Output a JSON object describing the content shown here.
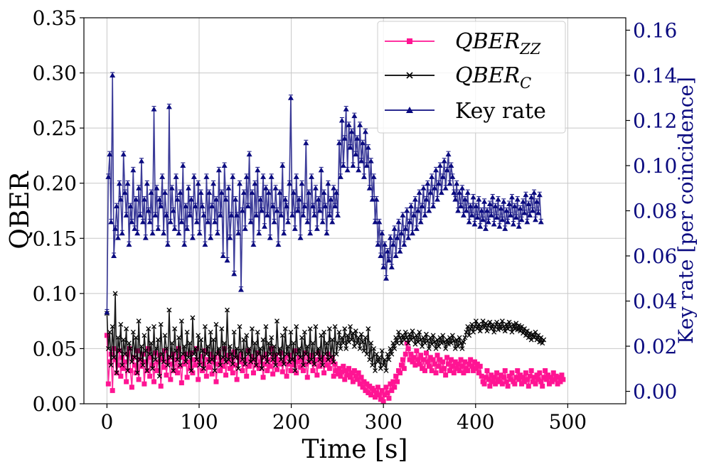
{
  "chart_data": {
    "type": "line",
    "title": "",
    "xlabel": "Time [s]",
    "ylabel": "QBER",
    "y2label": "Key rate [per coincidence]",
    "xlim": [
      -25,
      563
    ],
    "ylim": [
      0,
      0.35
    ],
    "y2lim": [
      -0.0055,
      0.1655
    ],
    "x_ticks": [
      "0",
      "100",
      "200",
      "300",
      "400",
      "500"
    ],
    "x_tick_values": [
      0,
      100,
      200,
      300,
      400,
      500
    ],
    "y_ticks": [
      "0.00",
      "0.05",
      "0.10",
      "0.15",
      "0.20",
      "0.25",
      "0.30",
      "0.35"
    ],
    "y_tick_values": [
      0,
      0.05,
      0.1,
      0.15,
      0.2,
      0.25,
      0.3,
      0.35
    ],
    "y2_ticks": [
      "0.00",
      "0.02",
      "0.04",
      "0.06",
      "0.08",
      "0.10",
      "0.12",
      "0.14",
      "0.16"
    ],
    "y2_tick_values": [
      0,
      0.02,
      0.04,
      0.06,
      0.08,
      0.1,
      0.12,
      0.14,
      0.16
    ],
    "grid": true,
    "legend_position": "top-right",
    "x_step": 1.5,
    "series": [
      {
        "name": "QBER_ZZ",
        "legend_main": "QBER",
        "legend_sub": "ZZ",
        "axis": "left",
        "color": "#ff1493",
        "marker": "square",
        "x_start": 0,
        "values": [
          0.062,
          0.018,
          0.038,
          0.045,
          0.012,
          0.05,
          0.04,
          0.028,
          0.035,
          0.048,
          0.025,
          0.042,
          0.032,
          0.038,
          0.02,
          0.045,
          0.05,
          0.03,
          0.015,
          0.042,
          0.035,
          0.028,
          0.048,
          0.022,
          0.04,
          0.034,
          0.045,
          0.018,
          0.038,
          0.03,
          0.05,
          0.025,
          0.042,
          0.035,
          0.02,
          0.046,
          0.03,
          0.038,
          0.044,
          0.016,
          0.04,
          0.033,
          0.048,
          0.026,
          0.038,
          0.042,
          0.022,
          0.036,
          0.045,
          0.03,
          0.04,
          0.028,
          0.05,
          0.034,
          0.019,
          0.042,
          0.036,
          0.045,
          0.024,
          0.038,
          0.032,
          0.046,
          0.028,
          0.04,
          0.035,
          0.05,
          0.022,
          0.038,
          0.043,
          0.03,
          0.036,
          0.048,
          0.025,
          0.04,
          0.033,
          0.045,
          0.027,
          0.038,
          0.042,
          0.02,
          0.036,
          0.046,
          0.03,
          0.04,
          0.034,
          0.05,
          0.026,
          0.038,
          0.044,
          0.032,
          0.04,
          0.028,
          0.047,
          0.035,
          0.022,
          0.042,
          0.038,
          0.045,
          0.03,
          0.036,
          0.04,
          0.025,
          0.048,
          0.034,
          0.038,
          0.043,
          0.028,
          0.04,
          0.035,
          0.046,
          0.032,
          0.038,
          0.042,
          0.024,
          0.036,
          0.045,
          0.03,
          0.04,
          0.034,
          0.05,
          0.027,
          0.038,
          0.044,
          0.031,
          0.04,
          0.036,
          0.046,
          0.029,
          0.038,
          0.042,
          0.025,
          0.036,
          0.044,
          0.03,
          0.04,
          0.035,
          0.048,
          0.028,
          0.038,
          0.042,
          0.033,
          0.04,
          0.03,
          0.046,
          0.036,
          0.024,
          0.042,
          0.038,
          0.044,
          0.03,
          0.036,
          0.04,
          0.026,
          0.046,
          0.034,
          0.038,
          0.042,
          0.028,
          0.04,
          0.035,
          0.045,
          0.032,
          0.038,
          0.042,
          0.025,
          0.036,
          0.03,
          0.027,
          0.032,
          0.025,
          0.029,
          0.034,
          0.022,
          0.03,
          0.026,
          0.032,
          0.024,
          0.028,
          0.02,
          0.03,
          0.025,
          0.022,
          0.028,
          0.018,
          0.024,
          0.015,
          0.02,
          0.012,
          0.018,
          0.01,
          0.016,
          0.008,
          0.014,
          0.012,
          0.006,
          0.01,
          0.015,
          0.008,
          0.004,
          0.012,
          0.002,
          0.008,
          0.015,
          0.01,
          0.005,
          0.018,
          0.012,
          0.02,
          0.015,
          0.025,
          0.02,
          0.03,
          0.028,
          0.035,
          0.04,
          0.032,
          0.045,
          0.055,
          0.05,
          0.04,
          0.045,
          0.038,
          0.042,
          0.035,
          0.048,
          0.04,
          0.036,
          0.044,
          0.032,
          0.04,
          0.03,
          0.046,
          0.038,
          0.034,
          0.042,
          0.03,
          0.04,
          0.036,
          0.028,
          0.044,
          0.034,
          0.04,
          0.03,
          0.038,
          0.032,
          0.026,
          0.042,
          0.036,
          0.03,
          0.04,
          0.034,
          0.028,
          0.038,
          0.032,
          0.036,
          0.03,
          0.04,
          0.034,
          0.028,
          0.038,
          0.032,
          0.03,
          0.036,
          0.04,
          0.034,
          0.03,
          0.038,
          0.032,
          0.036,
          0.028,
          0.034,
          0.025,
          0.02,
          0.018,
          0.024,
          0.03,
          0.022,
          0.016,
          0.026,
          0.02,
          0.024,
          0.018,
          0.028,
          0.022,
          0.02,
          0.026,
          0.018,
          0.024,
          0.03,
          0.02,
          0.016,
          0.025,
          0.022,
          0.028,
          0.02,
          0.018,
          0.024,
          0.03,
          0.022,
          0.026,
          0.018,
          0.024,
          0.02,
          0.028,
          0.022,
          0.016,
          0.025,
          0.03,
          0.02,
          0.024,
          0.018,
          0.026,
          0.022,
          0.028,
          0.02,
          0.016,
          0.024,
          0.03,
          0.022,
          0.026,
          0.018,
          0.024,
          0.02,
          0.028,
          0.022,
          0.025,
          0.018,
          0.024,
          0.02,
          0.026,
          0.022
        ]
      },
      {
        "name": "QBER_C",
        "legend_main": "QBER",
        "legend_sub": "C",
        "axis": "left",
        "color": "#000000",
        "marker": "x",
        "x_start": 0,
        "values": [
          0.082,
          0.05,
          0.065,
          0.035,
          0.07,
          0.042,
          0.1,
          0.028,
          0.06,
          0.048,
          0.072,
          0.035,
          0.058,
          0.045,
          0.068,
          0.03,
          0.055,
          0.05,
          0.038,
          0.065,
          0.042,
          0.06,
          0.028,
          0.075,
          0.04,
          0.052,
          0.035,
          0.062,
          0.048,
          0.03,
          0.068,
          0.045,
          0.055,
          0.032,
          0.07,
          0.04,
          0.05,
          0.058,
          0.025,
          0.072,
          0.045,
          0.038,
          0.062,
          0.05,
          0.035,
          0.085,
          0.042,
          0.055,
          0.03,
          0.068,
          0.048,
          0.04,
          0.06,
          0.035,
          0.075,
          0.045,
          0.052,
          0.038,
          0.065,
          0.042,
          0.055,
          0.03,
          0.078,
          0.045,
          0.05,
          0.04,
          0.062,
          0.035,
          0.058,
          0.048,
          0.032,
          0.07,
          0.045,
          0.052,
          0.038,
          0.065,
          0.04,
          0.058,
          0.03,
          0.072,
          0.045,
          0.05,
          0.035,
          0.068,
          0.042,
          0.055,
          0.038,
          0.085,
          0.04,
          0.052,
          0.045,
          0.036,
          0.065,
          0.042,
          0.05,
          0.032,
          0.07,
          0.048,
          0.04,
          0.058,
          0.036,
          0.062,
          0.045,
          0.05,
          0.038,
          0.068,
          0.04,
          0.055,
          0.035,
          0.065,
          0.045,
          0.05,
          0.032,
          0.058,
          0.042,
          0.07,
          0.038,
          0.055,
          0.045,
          0.06,
          0.04,
          0.052,
          0.035,
          0.075,
          0.045,
          0.05,
          0.04,
          0.062,
          0.036,
          0.068,
          0.045,
          0.052,
          0.038,
          0.065,
          0.04,
          0.055,
          0.03,
          0.07,
          0.045,
          0.05,
          0.042,
          0.06,
          0.035,
          0.065,
          0.045,
          0.052,
          0.038,
          0.068,
          0.04,
          0.055,
          0.036,
          0.07,
          0.045,
          0.05,
          0.04,
          0.062,
          0.035,
          0.065,
          0.045,
          0.055,
          0.04,
          0.068,
          0.042,
          0.058,
          0.038,
          0.07,
          0.045,
          0.055,
          0.065,
          0.05,
          0.06,
          0.055,
          0.068,
          0.05,
          0.062,
          0.056,
          0.07,
          0.058,
          0.064,
          0.052,
          0.066,
          0.055,
          0.06,
          0.05,
          0.063,
          0.056,
          0.048,
          0.06,
          0.045,
          0.068,
          0.04,
          0.055,
          0.035,
          0.05,
          0.03,
          0.045,
          0.038,
          0.042,
          0.032,
          0.048,
          0.035,
          0.04,
          0.03,
          0.045,
          0.04,
          0.05,
          0.045,
          0.055,
          0.05,
          0.06,
          0.055,
          0.065,
          0.06,
          0.055,
          0.062,
          0.058,
          0.065,
          0.06,
          0.055,
          0.063,
          0.058,
          0.066,
          0.06,
          0.054,
          0.062,
          0.056,
          0.065,
          0.058,
          0.052,
          0.06,
          0.055,
          0.063,
          0.057,
          0.05,
          0.06,
          0.054,
          0.062,
          0.056,
          0.05,
          0.058,
          0.052,
          0.06,
          0.055,
          0.062,
          0.056,
          0.05,
          0.058,
          0.054,
          0.06,
          0.055,
          0.062,
          0.057,
          0.05,
          0.058,
          0.052,
          0.06,
          0.055,
          0.05,
          0.056,
          0.06,
          0.065,
          0.07,
          0.062,
          0.068,
          0.072,
          0.065,
          0.07,
          0.075,
          0.068,
          0.072,
          0.066,
          0.07,
          0.075,
          0.069,
          0.073,
          0.066,
          0.071,
          0.074,
          0.068,
          0.072,
          0.065,
          0.07,
          0.074,
          0.067,
          0.072,
          0.068,
          0.075,
          0.07,
          0.066,
          0.072,
          0.068,
          0.074,
          0.07,
          0.065,
          0.072,
          0.068,
          0.073,
          0.067,
          0.071,
          0.066,
          0.07,
          0.064,
          0.068,
          0.062,
          0.066,
          0.06,
          0.064,
          0.058,
          0.063,
          0.06,
          0.065,
          0.058,
          0.062,
          0.056,
          0.06,
          0.055,
          0.058
        ]
      },
      {
        "name": "Key rate",
        "legend_main": "Key rate",
        "legend_sub": "",
        "axis": "right",
        "color": "#0b0b80",
        "marker": "triangle",
        "x_start": 0,
        "values": [
          0.035,
          0.095,
          0.105,
          0.075,
          0.14,
          0.06,
          0.072,
          0.082,
          0.068,
          0.092,
          0.085,
          0.07,
          0.105,
          0.088,
          0.078,
          0.092,
          0.065,
          0.082,
          0.075,
          0.098,
          0.072,
          0.085,
          0.07,
          0.09,
          0.078,
          0.102,
          0.075,
          0.085,
          0.068,
          0.092,
          0.08,
          0.075,
          0.088,
          0.07,
          0.125,
          0.078,
          0.09,
          0.072,
          0.085,
          0.082,
          0.095,
          0.07,
          0.088,
          0.078,
          0.065,
          0.126,
          0.075,
          0.09,
          0.08,
          0.072,
          0.095,
          0.085,
          0.07,
          0.088,
          0.075,
          0.1,
          0.065,
          0.082,
          0.072,
          0.09,
          0.078,
          0.085,
          0.068,
          0.095,
          0.082,
          0.075,
          0.092,
          0.07,
          0.088,
          0.082,
          0.078,
          0.065,
          0.095,
          0.075,
          0.088,
          0.068,
          0.082,
          0.092,
          0.075,
          0.085,
          0.07,
          0.098,
          0.078,
          0.088,
          0.06,
          0.1,
          0.085,
          0.058,
          0.09,
          0.068,
          0.078,
          0.095,
          0.052,
          0.085,
          0.078,
          0.07,
          0.092,
          0.045,
          0.08,
          0.088,
          0.072,
          0.095,
          0.082,
          0.105,
          0.075,
          0.088,
          0.065,
          0.092,
          0.078,
          0.098,
          0.07,
          0.085,
          0.08,
          0.095,
          0.073,
          0.09,
          0.078,
          0.088,
          0.068,
          0.095,
          0.082,
          0.075,
          0.09,
          0.08,
          0.065,
          0.088,
          0.078,
          0.1,
          0.07,
          0.085,
          0.082,
          0.075,
          0.092,
          0.13,
          0.078,
          0.088,
          0.072,
          0.095,
          0.08,
          0.085,
          0.068,
          0.092,
          0.078,
          0.082,
          0.11,
          0.075,
          0.088,
          0.07,
          0.095,
          0.082,
          0.078,
          0.09,
          0.072,
          0.085,
          0.08,
          0.098,
          0.075,
          0.088,
          0.082,
          0.07,
          0.092,
          0.078,
          0.085,
          0.075,
          0.09,
          0.082,
          0.088,
          0.078,
          0.11,
          0.095,
          0.12,
          0.1,
          0.112,
          0.125,
          0.098,
          0.118,
          0.108,
          0.115,
          0.1,
          0.122,
          0.105,
          0.112,
          0.098,
          0.118,
          0.102,
          0.11,
          0.095,
          0.115,
          0.1,
          0.108,
          0.09,
          0.102,
          0.085,
          0.095,
          0.075,
          0.085,
          0.065,
          0.075,
          0.06,
          0.07,
          0.055,
          0.065,
          0.05,
          0.062,
          0.058,
          0.068,
          0.055,
          0.065,
          0.072,
          0.06,
          0.068,
          0.075,
          0.062,
          0.07,
          0.078,
          0.065,
          0.072,
          0.08,
          0.068,
          0.075,
          0.082,
          0.07,
          0.078,
          0.085,
          0.072,
          0.08,
          0.088,
          0.075,
          0.082,
          0.09,
          0.078,
          0.085,
          0.092,
          0.08,
          0.088,
          0.095,
          0.082,
          0.09,
          0.098,
          0.085,
          0.092,
          0.1,
          0.088,
          0.095,
          0.102,
          0.09,
          0.098,
          0.105,
          0.092,
          0.1,
          0.095,
          0.088,
          0.085,
          0.092,
          0.08,
          0.088,
          0.082,
          0.09,
          0.078,
          0.085,
          0.08,
          0.088,
          0.075,
          0.082,
          0.078,
          0.086,
          0.074,
          0.082,
          0.077,
          0.085,
          0.073,
          0.08,
          0.076,
          0.084,
          0.072,
          0.08,
          0.075,
          0.083,
          0.078,
          0.086,
          0.074,
          0.082,
          0.077,
          0.085,
          0.073,
          0.081,
          0.076,
          0.084,
          0.072,
          0.08,
          0.075,
          0.083,
          0.078,
          0.086,
          0.074,
          0.082,
          0.077,
          0.085,
          0.073,
          0.081,
          0.076,
          0.084,
          0.079,
          0.087,
          0.075,
          0.083,
          0.078,
          0.086,
          0.08,
          0.088,
          0.076,
          0.084,
          0.079,
          0.087,
          0.075
        ]
      }
    ]
  }
}
